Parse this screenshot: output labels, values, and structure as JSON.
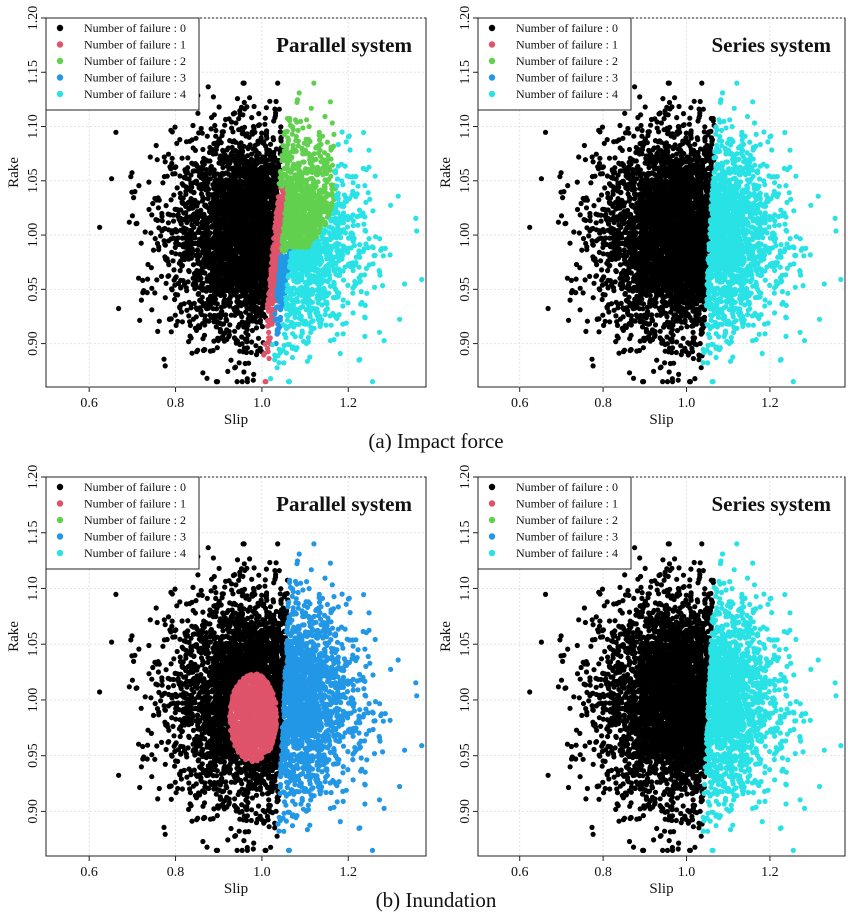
{
  "figure": {
    "captions": [
      "(a) Impact force",
      "(b) Inundation"
    ]
  },
  "legend": {
    "entries": [
      {
        "label": "Number of failure : 0",
        "color": "#000000"
      },
      {
        "label": "Number of failure : 1",
        "color": "#df536b"
      },
      {
        "label": "Number of failure : 2",
        "color": "#61d04f"
      },
      {
        "label": "Number of failure : 3",
        "color": "#2297e6"
      },
      {
        "label": "Number of failure : 4",
        "color": "#28e2e5"
      }
    ]
  },
  "chart_data": [
    {
      "type": "scatter",
      "title": "Parallel system",
      "group": "(a) Impact force",
      "xlabel": "Slip",
      "ylabel": "Rake",
      "xlim": [
        0.5,
        1.38
      ],
      "ylim": [
        0.86,
        1.2
      ],
      "xticks": [
        "0.6",
        "0.8",
        "1.0",
        "1.2"
      ],
      "yticks": [
        "0.90",
        "0.95",
        "1.00",
        "1.05",
        "1.10",
        "1.15",
        "1.20"
      ],
      "grid": true,
      "legend_position": "top-left",
      "series": [
        {
          "name": "Number of failure : 0",
          "color": "#000000",
          "region": "slip < ~1.05 (outside boundary band)"
        },
        {
          "name": "Number of failure : 1",
          "color": "#df536b",
          "region": "thin band near slip 1.02-1.05, rake 0.87-1.05"
        },
        {
          "name": "Number of failure : 2",
          "color": "#61d04f",
          "region": "slip 1.05-1.17, rake above ~0.98"
        },
        {
          "name": "Number of failure : 3",
          "color": "#2297e6",
          "region": "thin boundary slip ~1.06-1.2"
        },
        {
          "name": "Number of failure : 4",
          "color": "#28e2e5",
          "region": "slip > ~1.07"
        }
      ]
    },
    {
      "type": "scatter",
      "title": "Series system",
      "group": "(a) Impact force",
      "xlabel": "Slip",
      "ylabel": "Rake",
      "xlim": [
        0.5,
        1.38
      ],
      "ylim": [
        0.86,
        1.2
      ],
      "xticks": [
        "0.6",
        "0.8",
        "1.0",
        "1.2"
      ],
      "yticks": [
        "0.90",
        "0.95",
        "1.00",
        "1.05",
        "1.10",
        "1.15",
        "1.20"
      ],
      "grid": true,
      "legend_position": "top-left",
      "series": [
        {
          "name": "Number of failure : 0",
          "color": "#000000",
          "region": "slip < ~1.06"
        },
        {
          "name": "Number of failure : 4",
          "color": "#28e2e5",
          "region": "slip > ~1.06"
        }
      ]
    },
    {
      "type": "scatter",
      "title": "Parallel system",
      "group": "(b) Inundation",
      "xlabel": "Slip",
      "ylabel": "Rake",
      "xlim": [
        0.5,
        1.38
      ],
      "ylim": [
        0.86,
        1.2
      ],
      "xticks": [
        "0.6",
        "0.8",
        "1.0",
        "1.2"
      ],
      "yticks": [
        "0.90",
        "0.95",
        "1.00",
        "1.05",
        "1.10",
        "1.15",
        "1.20"
      ],
      "grid": true,
      "legend_position": "top-left",
      "series": [
        {
          "name": "Number of failure : 0",
          "color": "#000000",
          "region": "slip < ~1.05"
        },
        {
          "name": "Number of failure : 1",
          "color": "#df536b",
          "region": "ellipse centered slip ~0.98, rake ~0.985"
        },
        {
          "name": "Number of failure : 3",
          "color": "#2297e6",
          "region": "slip > ~1.06"
        }
      ]
    },
    {
      "type": "scatter",
      "title": "Series system",
      "group": "(b) Inundation",
      "xlabel": "Slip",
      "ylabel": "Rake",
      "xlim": [
        0.5,
        1.38
      ],
      "ylim": [
        0.86,
        1.2
      ],
      "xticks": [
        "0.6",
        "0.8",
        "1.0",
        "1.2"
      ],
      "yticks": [
        "0.90",
        "0.95",
        "1.00",
        "1.05",
        "1.10",
        "1.15",
        "1.20"
      ],
      "grid": true,
      "legend_position": "top-left",
      "series": [
        {
          "name": "Number of failure : 0",
          "color": "#000000",
          "region": "slip < ~1.05"
        },
        {
          "name": "Number of failure : 4",
          "color": "#28e2e5",
          "region": "slip > ~1.05"
        }
      ]
    }
  ]
}
